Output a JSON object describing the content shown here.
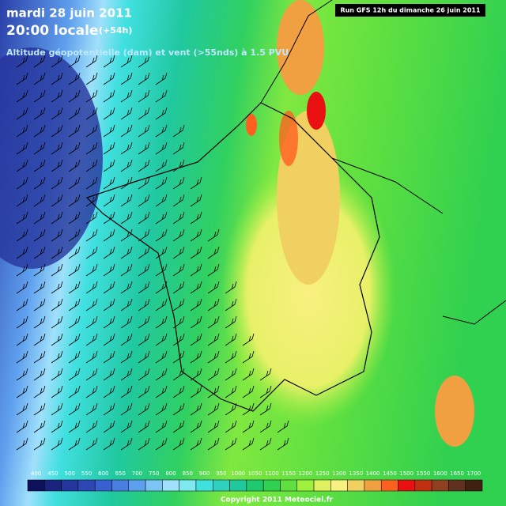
{
  "header": {
    "date": "mardi 28 juin 2011",
    "time": "20:00 locale",
    "lead": "(+54h)",
    "subtitle": "Altitude géopotentielle (dam) et vent (>55nds) à 1.5 PVU",
    "run": "Run GFS 12h du dimanche 26 juin 2011"
  },
  "legend": [
    {
      "value": 400,
      "color": "#0f0f5a"
    },
    {
      "value": 450,
      "color": "#1a237e"
    },
    {
      "value": 500,
      "color": "#26359c"
    },
    {
      "value": 550,
      "color": "#2f47b5"
    },
    {
      "value": 600,
      "color": "#3a5fd0"
    },
    {
      "value": 650,
      "color": "#4a7ee0"
    },
    {
      "value": 700,
      "color": "#5fa0ee"
    },
    {
      "value": 750,
      "color": "#7cc4f6"
    },
    {
      "value": 800,
      "color": "#a0e0fb"
    },
    {
      "value": 850,
      "color": "#7de8f0"
    },
    {
      "value": 900,
      "color": "#40e0e0"
    },
    {
      "value": 950,
      "color": "#30d0c0"
    },
    {
      "value": 1000,
      "color": "#20c8a0"
    },
    {
      "value": 1050,
      "color": "#20c870"
    },
    {
      "value": 1100,
      "color": "#30d050"
    },
    {
      "value": 1150,
      "color": "#60e040"
    },
    {
      "value": 1200,
      "color": "#a0f040"
    },
    {
      "value": 1250,
      "color": "#e0f060"
    },
    {
      "value": 1300,
      "color": "#f8f080"
    },
    {
      "value": 1350,
      "color": "#f0d060"
    },
    {
      "value": 1400,
      "color": "#f0a040"
    },
    {
      "value": 1450,
      "color": "#ff6020"
    },
    {
      "value": 1500,
      "color": "#e81010"
    },
    {
      "value": 1550,
      "color": "#c03010"
    },
    {
      "value": 1600,
      "color": "#904020"
    },
    {
      "value": 1650,
      "color": "#603020"
    },
    {
      "value": 1700,
      "color": "#402010"
    }
  ],
  "footer": {
    "copyright": "Copyright 2011 Meteociel.fr"
  }
}
